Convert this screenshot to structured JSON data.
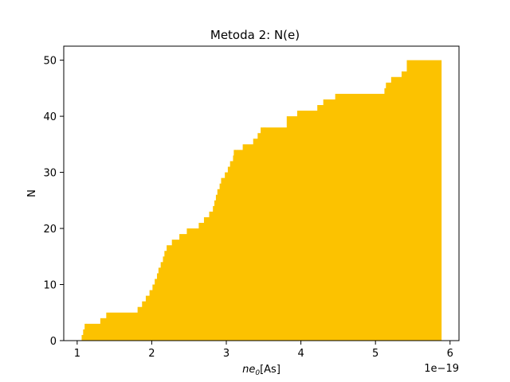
{
  "chart_data": {
    "type": "area",
    "style": "step",
    "title": "Metoda 2: N(e)",
    "xlabel_base": "ne",
    "xlabel_sub": "0",
    "xlabel_unit": "[As]",
    "ylabel": "N",
    "x_offset_text": "1e−19",
    "x_scale_exponent": -19,
    "xlim": [
      0.82,
      6.12
    ],
    "ylim": [
      0,
      52.5
    ],
    "x_ticks": [
      1,
      2,
      3,
      4,
      5,
      6
    ],
    "y_ticks": [
      0,
      10,
      20,
      30,
      40,
      50
    ],
    "x_tick_labels": [
      "1",
      "2",
      "3",
      "4",
      "5",
      "6"
    ],
    "y_tick_labels": [
      "0",
      "10",
      "20",
      "30",
      "40",
      "50"
    ],
    "fill_color": "#fcc200",
    "grid": false,
    "series": [
      {
        "x": [
          1.06,
          1.08,
          1.1,
          1.12,
          1.31,
          1.39,
          1.81,
          1.87,
          1.92,
          1.97,
          2.01,
          2.04,
          2.07,
          2.09,
          2.11,
          2.12,
          2.15,
          2.17,
          2.2,
          2.27,
          2.37,
          2.47,
          2.63,
          2.7,
          2.77,
          2.82,
          2.84,
          2.86,
          2.88,
          2.91,
          2.93,
          2.96,
          2.98,
          3.02,
          3.05,
          3.09,
          3.1,
          3.12,
          3.15,
          3.18,
          3.22,
          3.36,
          3.42,
          3.46,
          3.5,
          3.52,
          3.81,
          3.95,
          4.22,
          4.3,
          4.46,
          5.12,
          5.14,
          5.21,
          5.35,
          5.42
        ],
        "y": [
          1,
          2,
          3,
          3,
          4,
          5,
          6,
          7,
          8,
          9,
          10,
          11,
          12,
          13,
          13,
          14,
          15,
          16,
          17,
          18,
          19,
          20,
          21,
          22,
          23,
          24,
          25,
          26,
          27,
          28,
          29,
          29,
          30,
          31,
          32,
          33,
          34,
          34,
          34,
          34,
          35,
          36,
          37,
          38,
          38,
          38,
          40,
          41,
          42,
          43,
          44,
          45,
          46,
          47,
          48,
          50
        ],
        "x_end": 5.88
      }
    ]
  }
}
